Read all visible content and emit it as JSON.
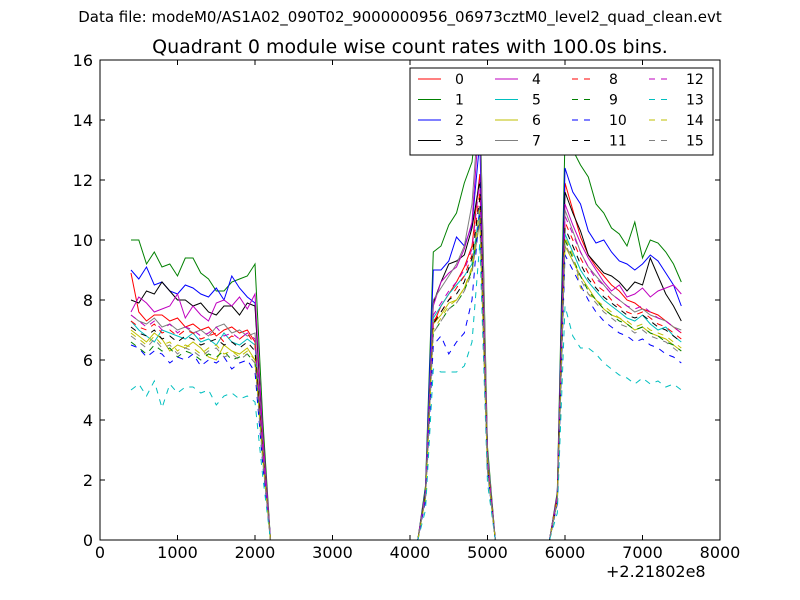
{
  "suptitle": "Data file: modeM0/AS1A02_090T02_9000000956_06973cztM0_level2_quad_clean.evt",
  "chart_data": {
    "type": "line",
    "title": "Quadrant 0 module wise count rates with 100.0s bins.",
    "xlabel": "",
    "ylabel": "",
    "x_offset_label": "+2.21802e8",
    "xlim": [
      0,
      8000
    ],
    "ylim": [
      0,
      16
    ],
    "xticks": [
      0,
      1000,
      2000,
      3000,
      4000,
      5000,
      6000,
      7000,
      8000
    ],
    "yticks": [
      0,
      2,
      4,
      6,
      8,
      10,
      12,
      14,
      16
    ],
    "grid": false,
    "legend_position": "top-right",
    "x": [
      400,
      500,
      600,
      700,
      800,
      900,
      1000,
      1100,
      1200,
      1300,
      1400,
      1500,
      1600,
      1700,
      1800,
      1900,
      2000,
      2100,
      2200,
      2300,
      2400,
      2500,
      2600,
      2700,
      2800,
      2900,
      3000,
      3100,
      3200,
      3300,
      3400,
      3500,
      3600,
      3700,
      3800,
      3900,
      4000,
      4100,
      4200,
      4300,
      4400,
      4500,
      4600,
      4700,
      4800,
      4900,
      5000,
      5100,
      5200,
      5300,
      5400,
      5500,
      5600,
      5700,
      5800,
      5900,
      6000,
      6100,
      6200,
      6300,
      6400,
      6500,
      6600,
      6700,
      6800,
      6900,
      7000,
      7100,
      7200,
      7300,
      7400,
      7500
    ],
    "series": [
      {
        "name": "0",
        "color": "#ff0000",
        "dash": "solid",
        "values": [
          8.9,
          7.6,
          7.3,
          7.5,
          7.5,
          7.3,
          7.4,
          7.1,
          7.2,
          7.0,
          7.1,
          6.8,
          7.0,
          7.1,
          6.9,
          7.0,
          6.6,
          3.0,
          0,
          0,
          0,
          0,
          0,
          0,
          0,
          0,
          0,
          0,
          0,
          0,
          0,
          0,
          0,
          0,
          0,
          0,
          0,
          0,
          1.5,
          7.2,
          7.8,
          8.2,
          8.6,
          9.1,
          9.8,
          12.2,
          2.6,
          0,
          0,
          0,
          0,
          0,
          0,
          0,
          0,
          1.4,
          11.9,
          11.0,
          10.1,
          9.5,
          9.1,
          8.8,
          8.5,
          8.3,
          8.0,
          7.9,
          7.7,
          7.6,
          7.5,
          7.3,
          7.1,
          6.9
        ]
      },
      {
        "name": "1",
        "color": "#008000",
        "dash": "solid",
        "values": [
          10.0,
          10.0,
          9.2,
          9.6,
          9.1,
          9.2,
          8.8,
          9.4,
          9.4,
          8.9,
          8.7,
          8.3,
          8.3,
          8.6,
          8.7,
          8.8,
          9.2,
          4.0,
          0,
          0,
          0,
          0,
          0,
          0,
          0,
          0,
          0,
          0,
          0,
          0,
          0,
          0,
          0,
          0,
          0,
          0,
          0,
          0,
          1.8,
          9.6,
          9.8,
          10.5,
          10.9,
          11.9,
          12.6,
          14.9,
          3.1,
          0,
          0,
          0,
          0,
          0,
          0,
          0,
          0,
          1.6,
          13.4,
          13.0,
          12.5,
          12.1,
          11.2,
          10.9,
          10.4,
          10.2,
          9.8,
          10.6,
          9.4,
          10.0,
          9.9,
          9.6,
          9.2,
          8.6
        ]
      },
      {
        "name": "2",
        "color": "#0000ff",
        "dash": "solid",
        "values": [
          9.0,
          8.7,
          9.1,
          8.5,
          8.6,
          8.3,
          8.2,
          8.5,
          8.4,
          8.2,
          8.1,
          8.4,
          8.0,
          8.8,
          8.4,
          8.1,
          7.9,
          3.5,
          0,
          0,
          0,
          0,
          0,
          0,
          0,
          0,
          0,
          0,
          0,
          0,
          0,
          0,
          0,
          0,
          0,
          0,
          0,
          0,
          1.7,
          9.0,
          9.0,
          9.3,
          10.1,
          9.8,
          10.5,
          13.3,
          2.9,
          0,
          0,
          0,
          0,
          0,
          0,
          0,
          0,
          1.5,
          12.4,
          11.6,
          11.2,
          10.3,
          9.9,
          10.0,
          9.6,
          9.3,
          9.2,
          9.0,
          9.2,
          9.5,
          9.3,
          8.9,
          8.5,
          7.8
        ]
      },
      {
        "name": "3",
        "color": "#000000",
        "dash": "solid",
        "values": [
          8.0,
          7.9,
          8.3,
          8.2,
          8.6,
          8.3,
          8.0,
          8.0,
          7.8,
          7.9,
          7.6,
          7.5,
          7.8,
          7.8,
          7.5,
          7.9,
          7.8,
          3.4,
          0,
          0,
          0,
          0,
          0,
          0,
          0,
          0,
          0,
          0,
          0,
          0,
          0,
          0,
          0,
          0,
          0,
          0,
          0,
          0,
          1.6,
          7.9,
          8.6,
          9.2,
          9.3,
          9.5,
          10.4,
          12.0,
          2.7,
          0,
          0,
          0,
          0,
          0,
          0,
          0,
          0,
          1.5,
          11.6,
          10.9,
          10.3,
          9.5,
          9.2,
          8.9,
          8.8,
          8.6,
          8.3,
          8.6,
          8.5,
          9.4,
          8.8,
          8.2,
          7.8,
          7.3
        ]
      },
      {
        "name": "4",
        "color": "#bf00bf",
        "dash": "solid",
        "values": [
          7.6,
          8.1,
          7.9,
          7.6,
          7.7,
          7.8,
          8.2,
          7.4,
          7.8,
          7.5,
          7.3,
          7.9,
          8.0,
          7.8,
          8.1,
          7.7,
          8.2,
          3.5,
          0,
          0,
          0,
          0,
          0,
          0,
          0,
          0,
          0,
          0,
          0,
          0,
          0,
          0,
          0,
          0,
          0,
          0,
          0,
          0,
          1.6,
          7.8,
          8.6,
          8.9,
          9.1,
          9.7,
          10.6,
          14.3,
          2.8,
          0,
          0,
          0,
          0,
          0,
          0,
          0,
          0,
          1.5,
          11.2,
          10.5,
          9.9,
          9.4,
          9.0,
          8.6,
          8.3,
          8.5,
          8.1,
          8.2,
          8.4,
          8.1,
          8.3,
          8.4,
          8.5,
          8.2
        ]
      },
      {
        "name": "5",
        "color": "#00bfbf",
        "dash": "solid",
        "values": [
          7.3,
          7.0,
          6.8,
          6.6,
          7.0,
          6.9,
          6.8,
          6.7,
          6.9,
          6.6,
          6.7,
          6.5,
          6.9,
          6.6,
          6.5,
          6.7,
          6.5,
          2.9,
          0,
          0,
          0,
          0,
          0,
          0,
          0,
          0,
          0,
          0,
          0,
          0,
          0,
          0,
          0,
          0,
          0,
          0,
          0,
          0,
          1.5,
          7.4,
          7.8,
          8.2,
          8.5,
          8.8,
          9.2,
          11.0,
          2.5,
          0,
          0,
          0,
          0,
          0,
          0,
          0,
          0,
          1.3,
          10.2,
          9.6,
          9.0,
          8.6,
          8.3,
          8.0,
          7.8,
          7.6,
          7.4,
          7.3,
          7.5,
          7.2,
          7.0,
          7.1,
          6.8,
          6.6
        ]
      },
      {
        "name": "6",
        "color": "#bfbf00",
        "dash": "solid",
        "values": [
          7.0,
          6.8,
          6.6,
          6.9,
          6.7,
          6.3,
          6.5,
          6.4,
          6.6,
          6.4,
          6.1,
          6.0,
          6.5,
          6.3,
          6.2,
          6.4,
          6.0,
          2.7,
          0,
          0,
          0,
          0,
          0,
          0,
          0,
          0,
          0,
          0,
          0,
          0,
          0,
          0,
          0,
          0,
          0,
          0,
          0,
          0,
          1.4,
          7.2,
          7.5,
          7.9,
          8.0,
          8.4,
          9.0,
          10.6,
          2.4,
          0,
          0,
          0,
          0,
          0,
          0,
          0,
          0,
          1.3,
          9.8,
          9.3,
          8.8,
          8.4,
          8.0,
          7.7,
          7.5,
          7.4,
          7.2,
          7.0,
          7.1,
          6.9,
          6.8,
          6.7,
          6.5,
          6.3
        ]
      },
      {
        "name": "7",
        "color": "#808080",
        "dash": "solid",
        "values": [
          7.5,
          7.3,
          7.2,
          7.4,
          7.1,
          7.2,
          7.0,
          7.1,
          6.9,
          7.0,
          6.8,
          7.1,
          7.2,
          6.9,
          7.0,
          6.8,
          6.9,
          3.1,
          0,
          0,
          0,
          0,
          0,
          0,
          0,
          0,
          0,
          0,
          0,
          0,
          0,
          0,
          0,
          0,
          0,
          0,
          0,
          0,
          1.6,
          8.0,
          8.4,
          8.8,
          9.2,
          9.8,
          11.2,
          14.8,
          2.9,
          0,
          0,
          0,
          0,
          0,
          0,
          0,
          0,
          1.4,
          11.0,
          10.3,
          9.6,
          9.1,
          8.8,
          8.5,
          8.2,
          8.0,
          7.8,
          7.6,
          7.7,
          7.5,
          7.4,
          7.3,
          7.1,
          7.0
        ]
      },
      {
        "name": "8",
        "color": "#ff0000",
        "dash": "dashed",
        "values": [
          7.3,
          7.1,
          7.0,
          7.2,
          6.9,
          7.0,
          6.8,
          7.0,
          6.9,
          6.7,
          6.8,
          6.9,
          6.6,
          6.8,
          6.7,
          6.9,
          6.5,
          2.9,
          0,
          0,
          0,
          0,
          0,
          0,
          0,
          0,
          0,
          0,
          0,
          0,
          0,
          0,
          0,
          0,
          0,
          0,
          0,
          0,
          1.5,
          7.3,
          7.6,
          8.0,
          8.4,
          8.8,
          9.5,
          11.6,
          2.6,
          0,
          0,
          0,
          0,
          0,
          0,
          0,
          0,
          1.4,
          10.6,
          10.0,
          9.4,
          8.9,
          8.5,
          8.3,
          8.0,
          7.8,
          7.6,
          7.5,
          7.6,
          7.4,
          7.2,
          7.1,
          6.9,
          6.7
        ]
      },
      {
        "name": "9",
        "color": "#008000",
        "dash": "dashed",
        "values": [
          6.6,
          6.4,
          6.2,
          6.5,
          6.3,
          6.4,
          6.1,
          6.3,
          6.2,
          6.0,
          6.2,
          6.1,
          6.3,
          6.0,
          6.1,
          6.2,
          5.9,
          2.6,
          0,
          0,
          0,
          0,
          0,
          0,
          0,
          0,
          0,
          0,
          0,
          0,
          0,
          0,
          0,
          0,
          0,
          0,
          0,
          0,
          1.4,
          6.9,
          7.3,
          7.7,
          7.9,
          8.3,
          9.0,
          10.8,
          2.4,
          0,
          0,
          0,
          0,
          0,
          0,
          0,
          0,
          1.3,
          10.0,
          9.4,
          8.8,
          8.3,
          8.0,
          7.7,
          7.5,
          7.3,
          7.2,
          7.0,
          7.1,
          6.9,
          6.8,
          6.6,
          6.5,
          6.3
        ]
      },
      {
        "name": "10",
        "color": "#0000ff",
        "dash": "dashed",
        "values": [
          6.5,
          6.4,
          6.1,
          6.3,
          6.2,
          5.9,
          6.1,
          6.0,
          6.2,
          5.8,
          6.0,
          5.9,
          6.1,
          5.7,
          5.9,
          6.0,
          5.6,
          2.5,
          0,
          0,
          0,
          0,
          0,
          0,
          0,
          0,
          0,
          0,
          0,
          0,
          0,
          0,
          0,
          0,
          0,
          0,
          0,
          0,
          1.3,
          6.5,
          6.8,
          6.2,
          6.6,
          6.9,
          8.0,
          11.1,
          2.3,
          0,
          0,
          0,
          0,
          0,
          0,
          0,
          0,
          1.2,
          9.5,
          9.0,
          8.5,
          8.0,
          7.6,
          7.3,
          7.1,
          6.9,
          6.8,
          6.6,
          6.7,
          6.5,
          6.4,
          6.2,
          6.1,
          5.9
        ]
      },
      {
        "name": "11",
        "color": "#000000",
        "dash": "dashed",
        "values": [
          7.1,
          6.9,
          6.8,
          7.0,
          6.7,
          6.8,
          6.6,
          6.8,
          6.7,
          6.5,
          6.6,
          6.7,
          6.5,
          6.6,
          6.4,
          6.6,
          6.3,
          2.8,
          0,
          0,
          0,
          0,
          0,
          0,
          0,
          0,
          0,
          0,
          0,
          0,
          0,
          0,
          0,
          0,
          0,
          0,
          0,
          0,
          1.5,
          7.2,
          7.6,
          8.0,
          8.2,
          8.6,
          9.4,
          11.4,
          2.5,
          0,
          0,
          0,
          0,
          0,
          0,
          0,
          0,
          1.3,
          10.4,
          9.8,
          9.2,
          8.7,
          8.4,
          8.1,
          7.9,
          7.7,
          7.5,
          7.4,
          7.5,
          7.3,
          7.1,
          7.0,
          6.8,
          6.6
        ]
      },
      {
        "name": "12",
        "color": "#bf00bf",
        "dash": "dashed",
        "values": [
          7.5,
          7.3,
          7.1,
          7.3,
          7.0,
          7.2,
          6.9,
          7.1,
          7.0,
          6.8,
          6.9,
          7.1,
          6.8,
          6.9,
          6.7,
          6.9,
          6.7,
          3.0,
          0,
          0,
          0,
          0,
          0,
          0,
          0,
          0,
          0,
          0,
          0,
          0,
          0,
          0,
          0,
          0,
          0,
          0,
          0,
          0,
          1.5,
          7.5,
          7.9,
          8.3,
          8.6,
          9.0,
          9.7,
          12.0,
          2.6,
          0,
          0,
          0,
          0,
          0,
          0,
          0,
          0,
          1.4,
          10.8,
          10.2,
          9.6,
          9.1,
          8.7,
          8.5,
          8.2,
          8.0,
          7.8,
          7.7,
          7.8,
          7.6,
          7.4,
          7.3,
          7.1,
          6.9
        ]
      },
      {
        "name": "13",
        "color": "#00bfbf",
        "dash": "dashed",
        "values": [
          5.0,
          5.2,
          4.8,
          5.3,
          4.4,
          5.2,
          4.9,
          5.1,
          5.1,
          4.9,
          5.0,
          4.5,
          4.8,
          4.9,
          4.7,
          4.8,
          4.6,
          2.1,
          0,
          0,
          0,
          0,
          0,
          0,
          0,
          0,
          0,
          0,
          0,
          0,
          0,
          0,
          0,
          0,
          0,
          0,
          0,
          0,
          1.0,
          5.7,
          5.6,
          5.6,
          5.6,
          5.8,
          6.6,
          9.9,
          1.9,
          0,
          0,
          0,
          0,
          0,
          0,
          0,
          0,
          0.9,
          7.8,
          6.8,
          6.4,
          6.4,
          6.2,
          5.9,
          5.7,
          5.5,
          5.4,
          5.2,
          5.4,
          5.2,
          5.3,
          5.1,
          5.2,
          5.0
        ]
      },
      {
        "name": "14",
        "color": "#bfbf00",
        "dash": "dashed",
        "values": [
          6.9,
          6.7,
          6.5,
          6.8,
          6.5,
          6.6,
          6.3,
          6.5,
          6.4,
          6.2,
          6.4,
          6.5,
          6.2,
          6.3,
          6.1,
          6.3,
          6.0,
          2.7,
          0,
          0,
          0,
          0,
          0,
          0,
          0,
          0,
          0,
          0,
          0,
          0,
          0,
          0,
          0,
          0,
          0,
          0,
          0,
          0,
          1.4,
          7.0,
          7.4,
          7.8,
          8.0,
          8.4,
          9.1,
          11.0,
          2.4,
          0,
          0,
          0,
          0,
          0,
          0,
          0,
          0,
          1.3,
          10.1,
          9.5,
          8.4,
          8.2,
          8.0,
          7.8,
          7.6,
          7.4,
          7.3,
          7.1,
          7.2,
          7.0,
          6.9,
          6.8,
          6.6,
          6.4
        ]
      },
      {
        "name": "15",
        "color": "#808080",
        "dash": "dashed",
        "values": [
          6.8,
          6.6,
          6.4,
          6.7,
          6.4,
          6.5,
          6.2,
          6.4,
          6.3,
          6.1,
          6.3,
          6.4,
          6.1,
          6.2,
          6.0,
          6.2,
          5.9,
          2.6,
          0,
          0,
          0,
          0,
          0,
          0,
          0,
          0,
          0,
          0,
          0,
          0,
          0,
          0,
          0,
          0,
          0,
          0,
          0,
          0,
          1.4,
          6.9,
          7.3,
          7.7,
          7.9,
          8.3,
          8.9,
          10.7,
          2.3,
          0,
          0,
          0,
          0,
          0,
          0,
          0,
          0,
          1.3,
          9.9,
          9.3,
          8.7,
          8.2,
          7.9,
          7.6,
          7.4,
          7.2,
          7.1,
          6.9,
          7.0,
          6.8,
          6.7,
          6.6,
          6.4,
          6.2
        ]
      }
    ]
  }
}
